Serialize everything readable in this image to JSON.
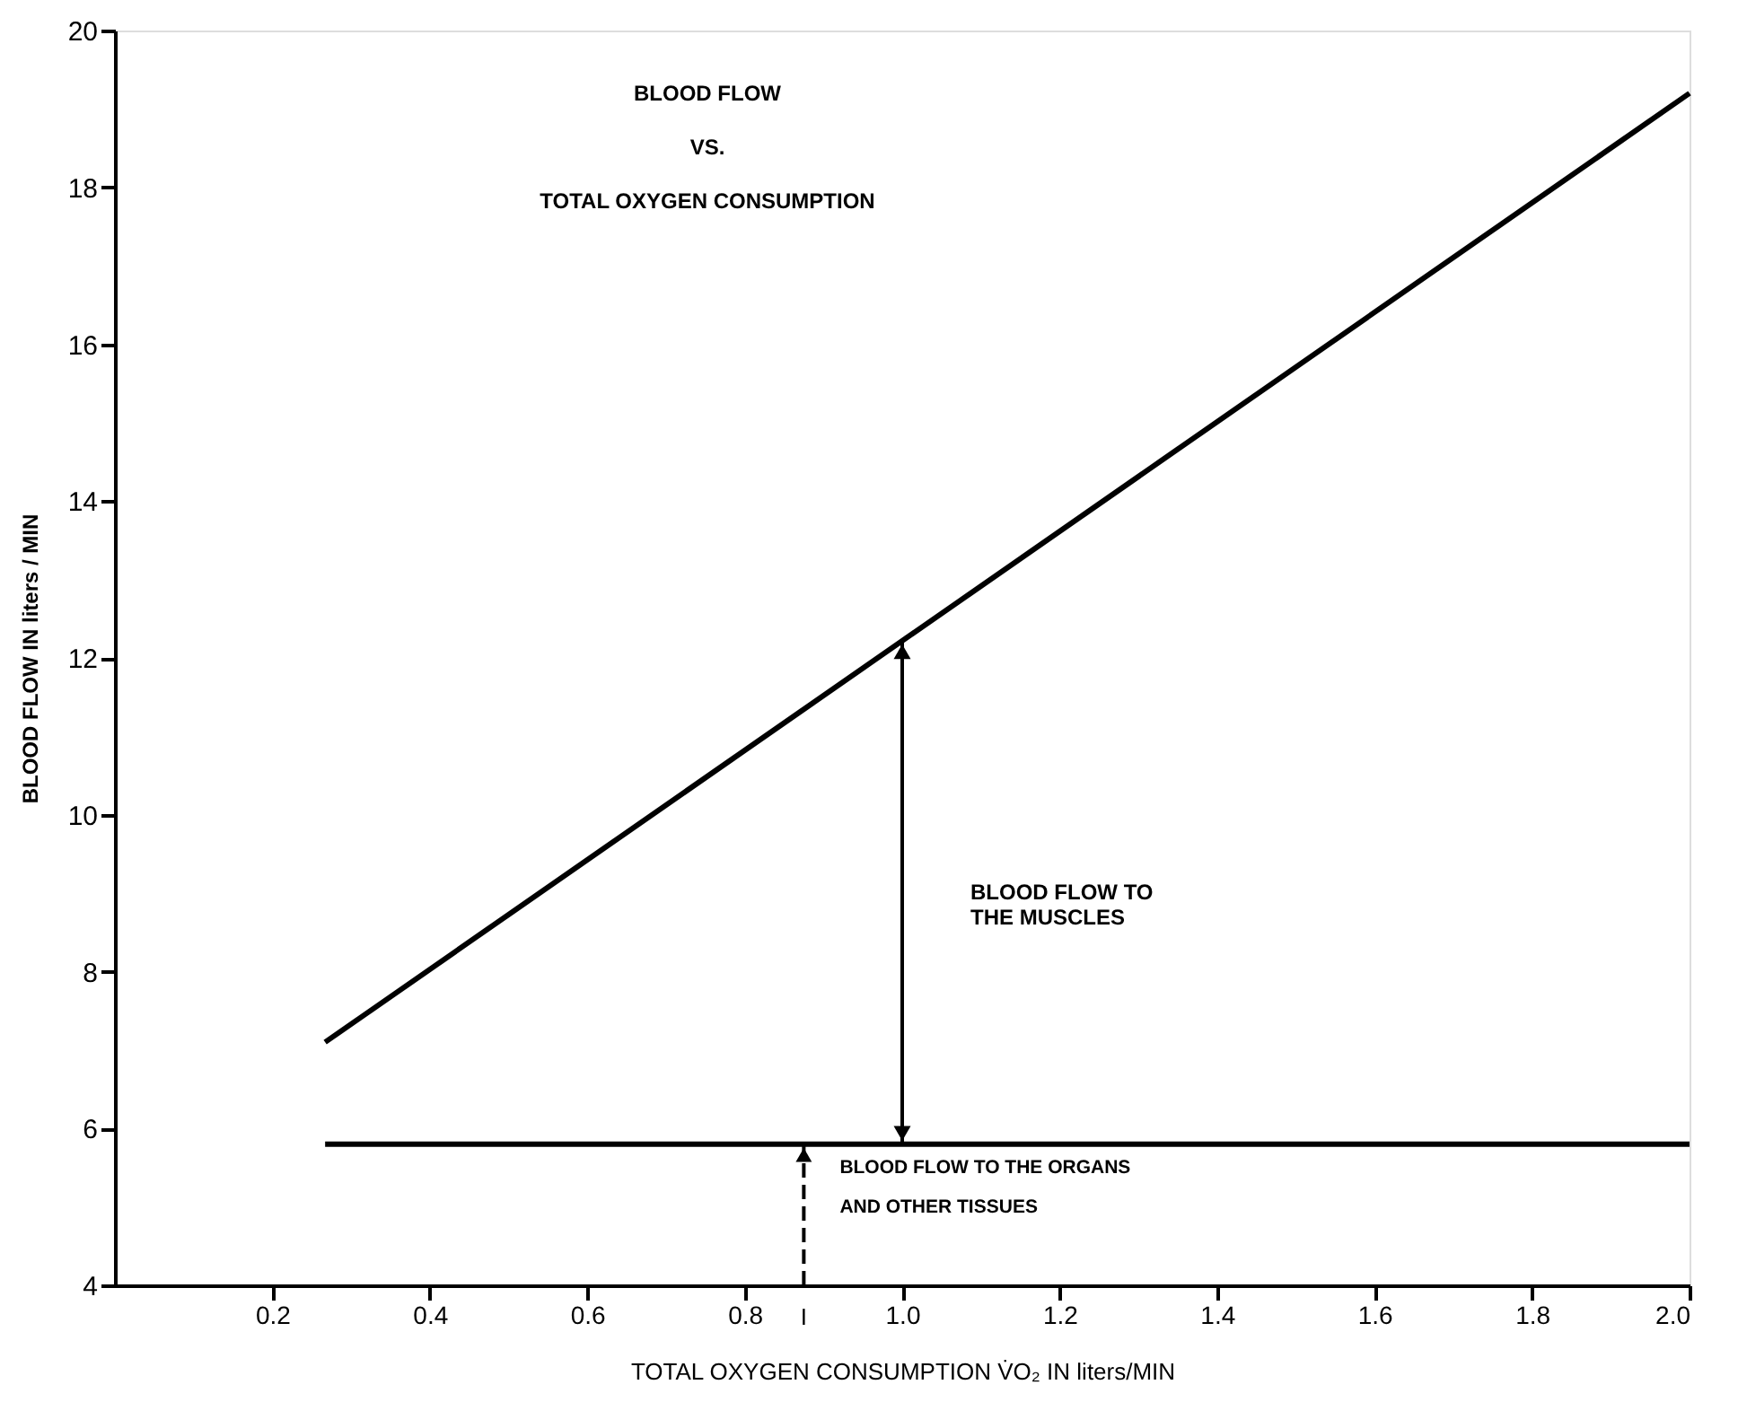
{
  "chart_data": {
    "type": "line",
    "title": "BLOOD FLOW\nVS.\nTOTAL OXYGEN CONSUMPTION",
    "xlabel": "TOTAL OXYGEN CONSUMPTION V̇O₂ IN liters/MIN",
    "ylabel": "BLOOD FLOW IN liters / MIN",
    "series": [
      {
        "color": "#000000",
        "values": [
          7.1,
          19.2
        ]
      },
      {
        "color": "#000000",
        "values": [
          5.8,
          5.8
        ]
      }
    ],
    "x": [
      0.267,
      2.0
    ],
    "xlim": [
      0,
      2.0
    ],
    "xticks": [
      0.2,
      0.4,
      0.6,
      0.8,
      {
        "value": 1.0,
        "label": "1.0"
      },
      1.2,
      1.4,
      1.6,
      1.8,
      {
        "value": 2.0,
        "label": "2.0"
      }
    ],
    "ylim": [
      4,
      20
    ],
    "yticks": [
      4,
      6,
      8,
      10,
      12,
      14,
      16,
      18,
      20
    ],
    "annotations": [
      "BLOOD FLOW TO\n\nTHE MUSCLES",
      {
        "text": "BLOOD FLOW TO THE ORGANS\nAND OTHER TISSUES",
        "x": 0.875,
        "y": 5.8
      },
      {
        "text": "I",
        "x": 0.875,
        "y": 5.8
      }
    ],
    "grid": false,
    "marker": "none",
    "line_style": "solid"
  }
}
